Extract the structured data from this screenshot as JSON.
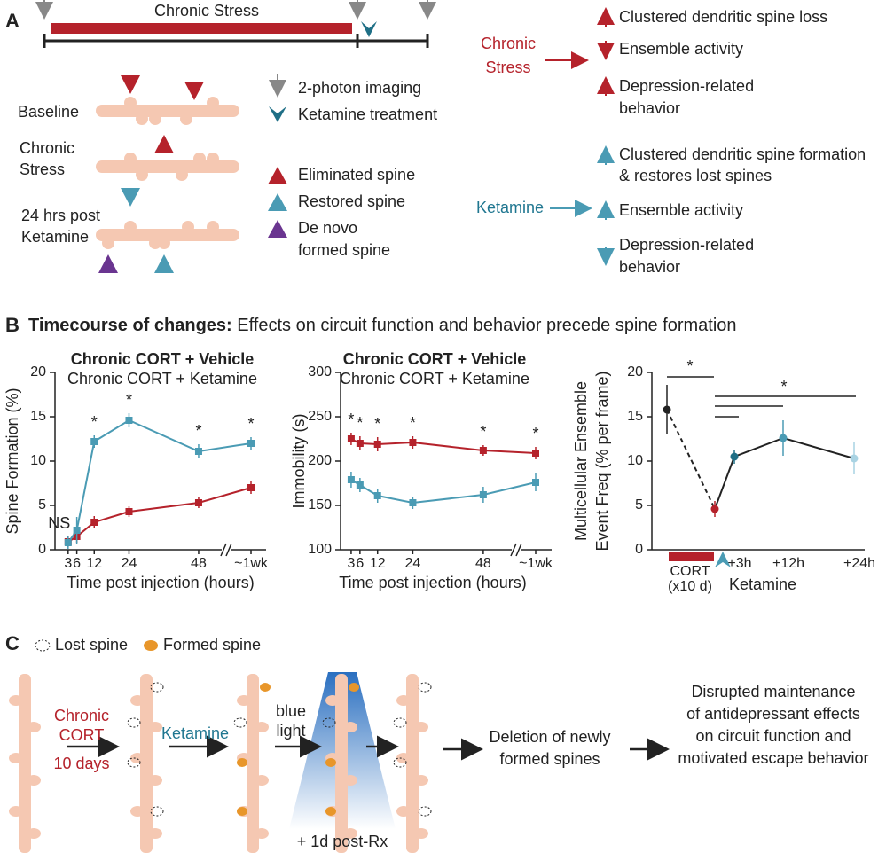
{
  "panel_a": {
    "label": "A",
    "timeline": "Chronic Stress",
    "rows": [
      [
        "Baseline"
      ],
      [
        "Chronic",
        "Stress"
      ],
      [
        "24 hrs post",
        "Ketamine"
      ]
    ],
    "legend": [
      [
        "2-photon imaging"
      ],
      [
        "Ketamine treatment"
      ],
      [
        "Eliminated spine"
      ],
      [
        "Restored spine"
      ],
      [
        "De novo",
        "formed spine"
      ]
    ],
    "stress": {
      "label": [
        "Chronic",
        "Stress"
      ],
      "effects": [
        [
          "Clustered dendritic spine loss"
        ],
        [
          "Ensemble activity"
        ],
        [
          "Depression-related",
          "behavior"
        ]
      ]
    },
    "ketamine": {
      "label": "Ketamine",
      "effects": [
        [
          "Clustered dendritic spine formation",
          "& restores lost spines"
        ],
        [
          "Ensemble activity"
        ],
        [
          "Depression-related",
          "behavior"
        ]
      ]
    }
  },
  "panel_b": {
    "label": "B",
    "title_bold": "Timecourse of changes:",
    "title_rest": " Effects on circuit function and behavior precede spine formation"
  },
  "chart_data": [
    {
      "type": "line",
      "y_label": "Spine Formation (%)",
      "x_label": "Time post injection (hours)",
      "x": [
        3,
        6,
        12,
        24,
        48,
        168
      ],
      "xticks": [
        3,
        6,
        12,
        24,
        48,
        {
          "value": 168,
          "label": "~1wk"
        }
      ],
      "ylim": [
        0,
        20
      ],
      "yticks": [
        0,
        5,
        10,
        15,
        20
      ],
      "series": [
        {
          "name": "Chronic CORT + Vehicle",
          "color": "#b5222b",
          "values": [
            0.9,
            1.5,
            3.1,
            4.3,
            5.3,
            7.0
          ],
          "errors": [
            0.6,
            0.7,
            0.7,
            0.6,
            0.6,
            0.7
          ]
        },
        {
          "name": "Chronic CORT + Ketamine",
          "color": "#4a9bb4",
          "values": [
            0.8,
            2.2,
            12.2,
            14.6,
            11.1,
            12.0
          ],
          "errors": [
            0.7,
            1.5,
            0.7,
            0.8,
            0.8,
            0.7
          ]
        }
      ],
      "annotations": [
        {
          "text": "NS",
          "x": 3
        },
        {
          "text": "*",
          "x": 12
        },
        {
          "text": "*",
          "x": 24
        },
        {
          "text": "*",
          "x": 48
        },
        {
          "text": "*",
          "x": 168
        }
      ]
    },
    {
      "type": "line",
      "y_label": "Immobility (s)",
      "x_label": "Time post injection (hours)",
      "x": [
        3,
        6,
        12,
        24,
        48,
        168
      ],
      "xticks": [
        3,
        6,
        12,
        24,
        48,
        {
          "value": 168,
          "label": "~1wk"
        }
      ],
      "ylim": [
        100,
        300
      ],
      "yticks": [
        100,
        150,
        200,
        250,
        300
      ],
      "series": [
        {
          "name": "Chronic CORT + Vehicle",
          "color": "#b5222b",
          "values": [
            225,
            220,
            219,
            221,
            212,
            209
          ],
          "errors": [
            7,
            8,
            8,
            7,
            6,
            7
          ]
        },
        {
          "name": "Chronic CORT + Ketamine",
          "color": "#4a9bb4",
          "values": [
            179,
            173,
            161,
            153,
            162,
            176
          ],
          "errors": [
            9,
            8,
            8,
            7,
            9,
            10
          ]
        }
      ],
      "annotations": [
        {
          "text": "*",
          "x": 3
        },
        {
          "text": "*",
          "x": 6
        },
        {
          "text": "*",
          "x": 12
        },
        {
          "text": "*",
          "x": 24
        },
        {
          "text": "*",
          "x": 48
        },
        {
          "text": "*",
          "x": 168
        }
      ]
    },
    {
      "type": "dotline",
      "y_label": [
        "Multicellular Ensemble",
        "Event Freq (% per frame)"
      ],
      "categories": [
        null,
        null,
        "+3h",
        "+12h",
        "+24h"
      ],
      "ylim": [
        0,
        20
      ],
      "yticks": [
        0,
        5,
        10,
        15,
        20
      ],
      "series": [
        {
          "color": "#222222",
          "point_colors": [
            "#222222",
            "#b5222b",
            "#1f6f86",
            "#4a9bb4",
            "#a9d3e3"
          ],
          "values": [
            15.8,
            4.6,
            10.5,
            12.6,
            10.3
          ],
          "errors": [
            2.8,
            0.9,
            0.8,
            2.0,
            1.8
          ]
        }
      ],
      "cort_label": [
        "CORT",
        "(x10 d)"
      ],
      "cort_color": "#b5222b",
      "treatment": "Ketamine",
      "annotations": [
        "*",
        "*"
      ]
    }
  ],
  "panel_c": {
    "label": "C",
    "legend": [
      "Lost spine",
      "Formed spine"
    ],
    "steps": [
      [
        "Chronic",
        "CORT"
      ],
      "10 days",
      "Ketamine",
      [
        "blue",
        "light"
      ],
      "+ 1d post-Rx"
    ],
    "result1": [
      "Deletion of newly",
      "formed spines"
    ],
    "result2": [
      "Disrupted maintenance",
      "of antidepressant effects",
      "on circuit function and",
      "motivated escape behavior"
    ]
  }
}
